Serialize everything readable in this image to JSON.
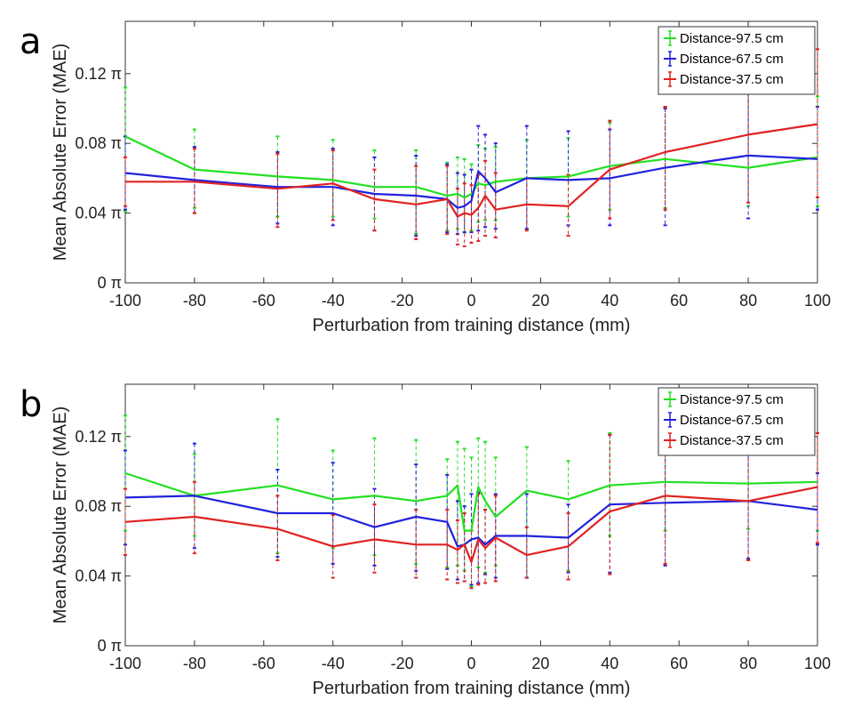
{
  "chart_data": [
    {
      "type": "line",
      "panel_label": "a",
      "xlabel": "Perturbation from training distance (mm)",
      "ylabel": "Mean Absolute Error (MAE)",
      "xlim": [
        -100,
        100
      ],
      "ylim": [
        0,
        0.15
      ],
      "xticks": [
        -100,
        -80,
        -60,
        -40,
        -20,
        0,
        20,
        40,
        60,
        80,
        100
      ],
      "yticks": [
        0,
        0.04,
        0.08,
        0.12
      ],
      "ytick_labels": [
        "0 π",
        "0.04 π",
        "0.08 π",
        "0.12 π"
      ],
      "legend_position": "top-right",
      "x": [
        -100,
        -80,
        -56,
        -40,
        -28,
        -16,
        -7,
        -4,
        -2,
        0,
        2,
        4,
        7,
        16,
        28,
        40,
        56,
        80,
        100
      ],
      "series": [
        {
          "name": "Distance-97.5 cm",
          "color": "#22e022",
          "values": [
            0.084,
            0.065,
            0.061,
            0.059,
            0.055,
            0.055,
            0.05,
            0.051,
            0.049,
            0.051,
            0.057,
            0.056,
            0.058,
            0.06,
            0.061,
            0.067,
            0.071,
            0.066,
            0.072
          ],
          "err_low": [
            0.041,
            0.043,
            0.038,
            0.038,
            0.037,
            0.028,
            0.03,
            0.031,
            0.029,
            0.03,
            0.035,
            0.036,
            0.036,
            0.031,
            0.038,
            0.042,
            0.043,
            0.044,
            0.044
          ],
          "err_high": [
            0.112,
            0.088,
            0.084,
            0.082,
            0.076,
            0.076,
            0.069,
            0.072,
            0.071,
            0.068,
            0.079,
            0.077,
            0.078,
            0.082,
            0.083,
            0.092,
            0.101,
            0.116,
            0.107
          ]
        },
        {
          "name": "Distance-67.5 cm",
          "color": "#2222dd",
          "values": [
            0.063,
            0.059,
            0.055,
            0.055,
            0.051,
            0.05,
            0.048,
            0.043,
            0.044,
            0.047,
            0.064,
            0.06,
            0.052,
            0.06,
            0.059,
            0.06,
            0.066,
            0.073,
            0.071
          ],
          "err_low": [
            0.042,
            0.04,
            0.034,
            0.033,
            0.03,
            0.027,
            0.029,
            0.028,
            0.029,
            0.029,
            0.03,
            0.032,
            0.031,
            0.031,
            0.033,
            0.033,
            0.033,
            0.037,
            0.042
          ],
          "err_high": [
            0.084,
            0.078,
            0.075,
            0.077,
            0.072,
            0.073,
            0.068,
            0.063,
            0.062,
            0.065,
            0.09,
            0.085,
            0.08,
            0.09,
            0.087,
            0.088,
            0.1,
            0.116,
            0.101
          ]
        },
        {
          "name": "Distance-37.5 cm",
          "color": "#e02222",
          "values": [
            0.058,
            0.058,
            0.054,
            0.057,
            0.048,
            0.045,
            0.048,
            0.038,
            0.04,
            0.039,
            0.043,
            0.05,
            0.042,
            0.045,
            0.044,
            0.065,
            0.075,
            0.085,
            0.091
          ],
          "err_low": [
            0.044,
            0.04,
            0.032,
            0.036,
            0.03,
            0.025,
            0.028,
            0.022,
            0.021,
            0.023,
            0.024,
            0.027,
            0.026,
            0.03,
            0.027,
            0.037,
            0.042,
            0.046,
            0.049
          ],
          "err_high": [
            0.072,
            0.077,
            0.074,
            0.076,
            0.065,
            0.067,
            0.067,
            0.054,
            0.057,
            0.056,
            0.062,
            0.07,
            0.063,
            0.06,
            0.062,
            0.093,
            0.101,
            0.114,
            0.134
          ]
        }
      ]
    },
    {
      "type": "line",
      "panel_label": "b",
      "xlabel": "Perturbation from training distance (mm)",
      "ylabel": "Mean Absolute Error (MAE)",
      "xlim": [
        -100,
        100
      ],
      "ylim": [
        0,
        0.15
      ],
      "xticks": [
        -100,
        -80,
        -60,
        -40,
        -20,
        0,
        20,
        40,
        60,
        80,
        100
      ],
      "yticks": [
        0,
        0.04,
        0.08,
        0.12
      ],
      "ytick_labels": [
        "0 π",
        "0.04 π",
        "0.08 π",
        "0.12 π"
      ],
      "legend_position": "top-right",
      "x": [
        -100,
        -80,
        -56,
        -40,
        -28,
        -16,
        -7,
        -4,
        -2,
        0,
        2,
        4,
        7,
        16,
        28,
        40,
        56,
        80,
        100
      ],
      "series": [
        {
          "name": "Distance-97.5 cm",
          "color": "#22e022",
          "values": [
            0.099,
            0.086,
            0.092,
            0.084,
            0.086,
            0.083,
            0.086,
            0.092,
            0.066,
            0.066,
            0.091,
            0.083,
            0.074,
            0.089,
            0.084,
            0.092,
            0.094,
            0.093,
            0.094
          ],
          "err_low": [
            0.066,
            0.063,
            0.053,
            0.056,
            0.052,
            0.047,
            0.045,
            0.046,
            0.043,
            0.034,
            0.045,
            0.042,
            0.046,
            0.039,
            0.043,
            0.063,
            0.066,
            0.067,
            0.066
          ],
          "err_high": [
            0.132,
            0.11,
            0.13,
            0.112,
            0.119,
            0.118,
            0.107,
            0.117,
            0.113,
            0.108,
            0.119,
            0.117,
            0.108,
            0.114,
            0.106,
            0.122,
            0.122,
            0.122,
            0.122
          ]
        },
        {
          "name": "Distance-67.5 cm",
          "color": "#2222dd",
          "values": [
            0.085,
            0.086,
            0.076,
            0.076,
            0.068,
            0.074,
            0.071,
            0.057,
            0.058,
            0.061,
            0.062,
            0.058,
            0.063,
            0.063,
            0.062,
            0.081,
            0.082,
            0.083,
            0.078
          ],
          "err_low": [
            0.058,
            0.056,
            0.051,
            0.047,
            0.046,
            0.043,
            0.044,
            0.038,
            0.037,
            0.035,
            0.036,
            0.041,
            0.039,
            0.039,
            0.042,
            0.042,
            0.046,
            0.05,
            0.058
          ],
          "err_high": [
            0.112,
            0.116,
            0.101,
            0.105,
            0.09,
            0.104,
            0.098,
            0.083,
            0.08,
            0.087,
            0.088,
            0.078,
            0.087,
            0.087,
            0.081,
            0.121,
            0.118,
            0.116,
            0.099
          ]
        },
        {
          "name": "Distance-37.5 cm",
          "color": "#e02222",
          "values": [
            0.071,
            0.074,
            0.067,
            0.057,
            0.061,
            0.058,
            0.058,
            0.055,
            0.058,
            0.048,
            0.061,
            0.056,
            0.062,
            0.052,
            0.057,
            0.077,
            0.086,
            0.083,
            0.091
          ],
          "err_low": [
            0.052,
            0.053,
            0.049,
            0.039,
            0.042,
            0.039,
            0.038,
            0.036,
            0.037,
            0.033,
            0.035,
            0.036,
            0.037,
            0.039,
            0.038,
            0.041,
            0.047,
            0.049,
            0.059
          ],
          "err_high": [
            0.09,
            0.094,
            0.086,
            0.075,
            0.081,
            0.078,
            0.078,
            0.072,
            0.076,
            0.066,
            0.087,
            0.078,
            0.086,
            0.068,
            0.076,
            0.121,
            0.117,
            0.115,
            0.122
          ]
        }
      ]
    }
  ]
}
